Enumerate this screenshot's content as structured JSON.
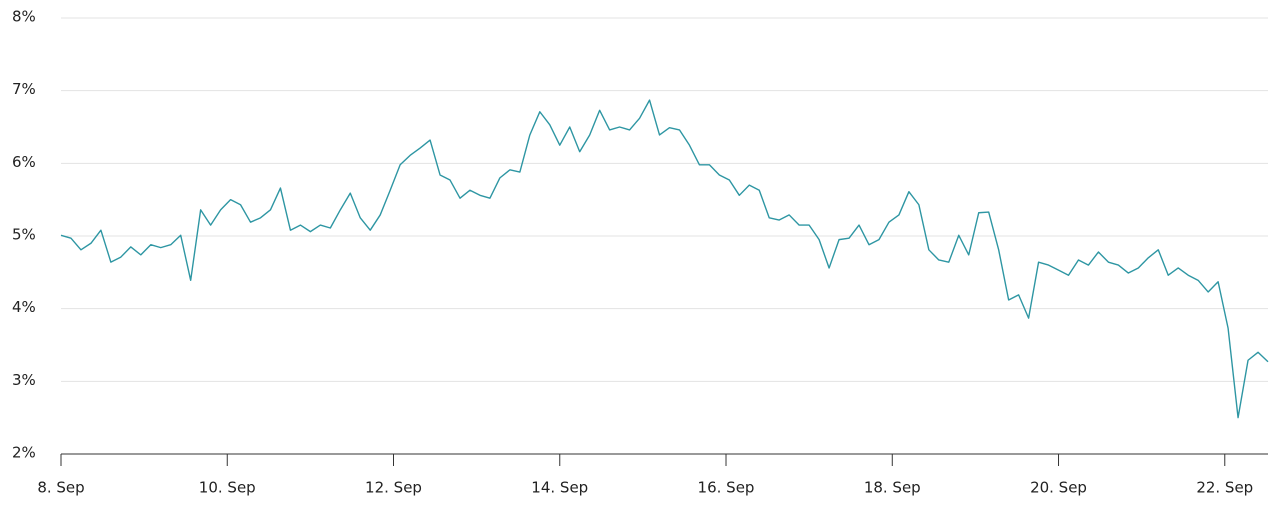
{
  "chart_data": {
    "type": "line",
    "x": [
      8,
      8.12,
      8.24,
      8.36,
      8.48,
      8.6,
      8.72,
      8.84,
      8.96,
      9.08,
      9.2,
      9.32,
      9.44,
      9.56,
      9.68,
      9.8,
      9.92,
      10.04,
      10.16,
      10.28,
      10.4,
      10.52,
      10.64,
      10.76,
      10.88,
      11,
      11.12,
      11.24,
      11.36,
      11.48,
      11.6,
      11.72,
      11.84,
      11.96,
      12.08,
      12.2,
      12.32,
      12.44,
      12.56,
      12.68,
      12.8,
      12.92,
      13.04,
      13.16,
      13.28,
      13.4,
      13.52,
      13.64,
      13.76,
      13.88,
      14,
      14.12,
      14.24,
      14.36,
      14.48,
      14.6,
      14.72,
      14.84,
      14.96,
      15.08,
      15.2,
      15.32,
      15.44,
      15.56,
      15.68,
      15.8,
      15.92,
      16.04,
      16.16,
      16.28,
      16.4,
      16.52,
      16.64,
      16.76,
      16.88,
      17,
      17.12,
      17.24,
      17.36,
      17.48,
      17.6,
      17.72,
      17.84,
      17.96,
      18.08,
      18.2,
      18.32,
      18.44,
      18.56,
      18.68,
      18.8,
      18.92,
      19.04,
      19.16,
      19.28,
      19.4,
      19.52,
      19.64,
      19.76,
      19.88,
      20,
      20.12,
      20.24,
      20.36,
      20.48,
      20.6,
      20.72,
      20.84,
      20.96,
      21.08,
      21.2,
      21.32,
      21.44,
      21.56,
      21.68,
      21.8,
      21.92,
      22.04,
      22.16,
      22.28,
      22.4,
      22.52
    ],
    "values": [
      5.01,
      4.97,
      4.81,
      4.9,
      5.08,
      4.64,
      4.71,
      4.85,
      4.74,
      4.88,
      4.84,
      4.88,
      5.01,
      4.39,
      5.36,
      5.15,
      5.36,
      5.5,
      5.43,
      5.19,
      5.25,
      5.36,
      5.66,
      5.08,
      5.15,
      5.06,
      5.15,
      5.11,
      5.36,
      5.59,
      5.25,
      5.08,
      5.29,
      5.63,
      5.98,
      6.11,
      6.21,
      6.32,
      5.84,
      5.77,
      5.52,
      5.63,
      5.56,
      5.52,
      5.8,
      5.91,
      5.88,
      6.39,
      6.71,
      6.53,
      6.25,
      6.5,
      6.16,
      6.39,
      6.73,
      6.46,
      6.5,
      6.46,
      6.62,
      6.87,
      6.39,
      6.49,
      6.46,
      6.25,
      5.98,
      5.98,
      5.84,
      5.77,
      5.56,
      5.7,
      5.63,
      5.25,
      5.22,
      5.29,
      5.15,
      5.15,
      4.95,
      4.56,
      4.95,
      4.97,
      5.15,
      4.88,
      4.95,
      5.19,
      5.29,
      5.61,
      5.43,
      4.81,
      4.67,
      4.64,
      5.01,
      4.74,
      5.32,
      5.33,
      4.81,
      4.12,
      4.19,
      3.87,
      4.64,
      4.6,
      4.53,
      4.46,
      4.67,
      4.6,
      4.78,
      4.64,
      4.6,
      4.49,
      4.56,
      4.7,
      4.81,
      4.46,
      4.56,
      4.46,
      4.39,
      4.23,
      4.37,
      3.73,
      2.5,
      3.29,
      3.4,
      3.27
    ],
    "color": "#2e96a3",
    "xlim": [
      8,
      22.52
    ],
    "ylim": [
      2,
      8
    ],
    "xticks": [
      {
        "value": 8,
        "label": "8. Sep"
      },
      {
        "value": 10,
        "label": "10. Sep"
      },
      {
        "value": 12,
        "label": "12. Sep"
      },
      {
        "value": 14,
        "label": "14. Sep"
      },
      {
        "value": 16,
        "label": "16. Sep"
      },
      {
        "value": 18,
        "label": "18. Sep"
      },
      {
        "value": 20,
        "label": "20. Sep"
      },
      {
        "value": 22,
        "label": "22. Sep"
      }
    ],
    "yticks": [
      {
        "value": 2,
        "label": "2%"
      },
      {
        "value": 3,
        "label": "3%"
      },
      {
        "value": 4,
        "label": "4%"
      },
      {
        "value": 5,
        "label": "5%"
      },
      {
        "value": 6,
        "label": "6%"
      },
      {
        "value": 7,
        "label": "7%"
      },
      {
        "value": 8,
        "label": "8%"
      }
    ],
    "grid": true
  }
}
